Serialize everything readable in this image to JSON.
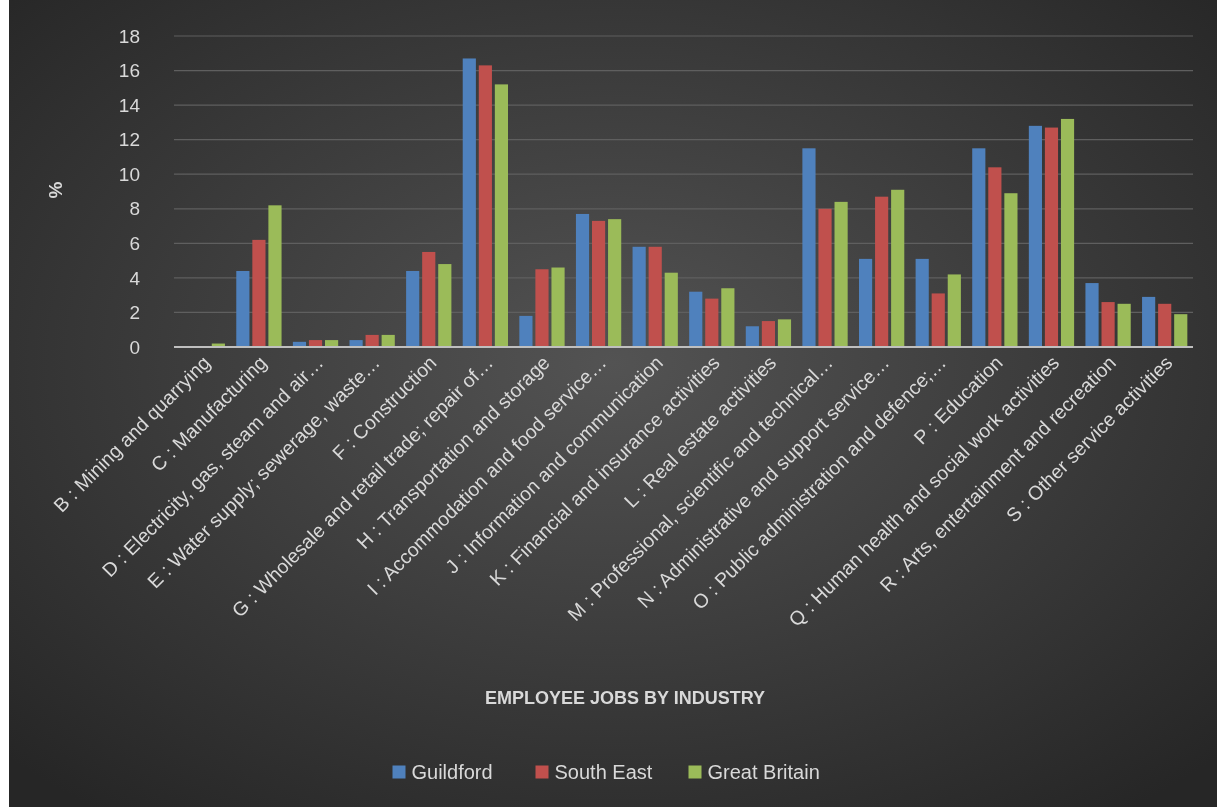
{
  "chart_data": {
    "type": "bar",
    "xlabel": "EMPLOYEE JOBS BY INDUSTRY",
    "ylabel": "%",
    "categories": [
      "B : Mining and quarrying",
      "C : Manufacturing",
      "D : Electricity, gas, steam and air…",
      "E : Water supply; sewerage, waste…",
      "F : Construction",
      "G : Wholesale and retail trade; repair of…",
      "H : Transportation and storage",
      "I : Accommodation and food service…",
      "J : Information and communication",
      "K : Financial and insurance activities",
      "L : Real estate activities",
      "M : Professional, scientific and technical…",
      "N : Administrative and support service…",
      "O : Public administration and defence;…",
      "P : Education",
      "Q : Human health and social work activities",
      "R : Arts, entertainment and recreation",
      "S : Other service activities"
    ],
    "series": [
      {
        "name": "Guildford",
        "color": "#4f81bd",
        "values": [
          null,
          4.4,
          0.3,
          0.4,
          4.4,
          16.7,
          1.8,
          7.7,
          5.8,
          3.2,
          1.2,
          11.5,
          5.1,
          5.1,
          11.5,
          12.8,
          3.7,
          2.9
        ]
      },
      {
        "name": "South East",
        "color": "#c0504d",
        "values": [
          null,
          6.2,
          0.4,
          0.7,
          5.5,
          16.3,
          4.5,
          7.3,
          5.8,
          2.8,
          1.5,
          8.0,
          8.7,
          3.1,
          10.4,
          12.7,
          2.6,
          2.5
        ]
      },
      {
        "name": "Great Britain",
        "color": "#9bbb59",
        "values": [
          0.2,
          8.2,
          0.4,
          0.7,
          4.8,
          15.2,
          4.6,
          7.4,
          4.3,
          3.4,
          1.6,
          8.4,
          9.1,
          4.2,
          8.9,
          13.2,
          2.5,
          1.9
        ]
      }
    ],
    "ylim": [
      0,
      18
    ],
    "yticks": [
      0,
      2,
      4,
      6,
      8,
      10,
      12,
      14,
      16,
      18
    ],
    "grid": "y",
    "legend": "bottom"
  }
}
